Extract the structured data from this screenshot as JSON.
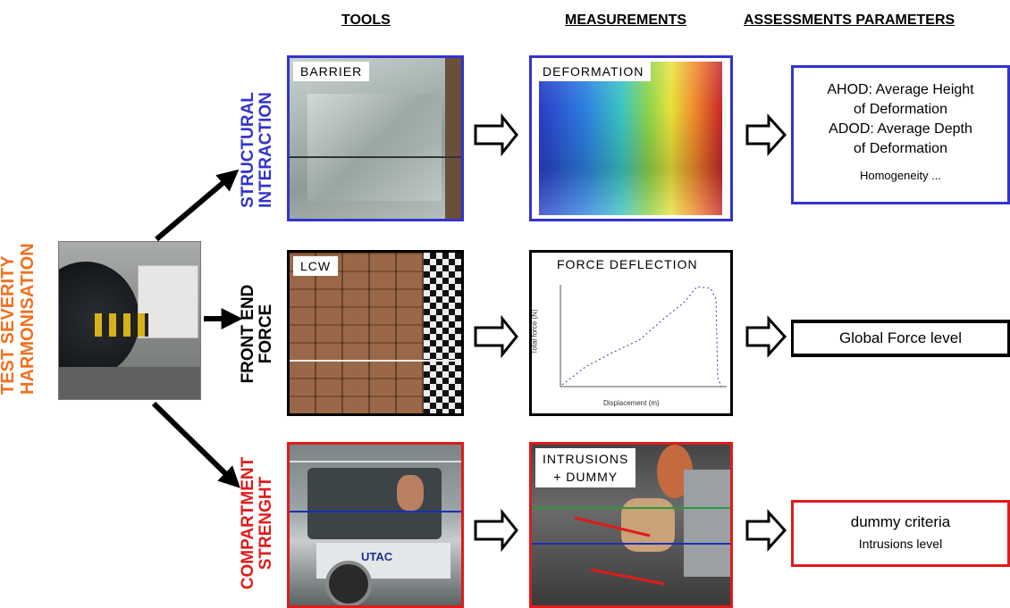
{
  "headers": {
    "tools": "TOOLS",
    "measurements": "MEASUREMENTS",
    "assessments": "ASSESSMENTS PARAMETERS"
  },
  "left_label": [
    "TEST SEVERITY",
    "HARMONISATION"
  ],
  "rows": [
    {
      "label": [
        "STRUCTURAL",
        "INTERACTION"
      ],
      "color": "#3333cc",
      "tool_tag": "BARRIER",
      "measure_tag": "DEFORMATION",
      "params": [
        "AHOD: Average Height",
        "of Deformation",
        "ADOD: Average Depth",
        "of Deformation",
        "Homogeneity ..."
      ]
    },
    {
      "label": [
        "FRONT END",
        "FORCE"
      ],
      "color": "#000000",
      "tool_tag": "LCW",
      "measure_tag": "FORCE DEFLECTION",
      "graph_xlabel": "Displacement (m)",
      "graph_ylabel": "Total force (N)",
      "params": [
        "Global Force level"
      ]
    },
    {
      "label": [
        "COMPARTMENT",
        "STRENGHT"
      ],
      "color": "#e01b1b",
      "tool_tag": "",
      "measure_tag": [
        "INTRUSIONS",
        "+ DUMMY"
      ],
      "photo_text": "UTAC",
      "params": [
        "dummy criteria",
        "Intrusions level"
      ]
    }
  ],
  "colors": {
    "orange": "#f07020",
    "blue": "#3333cc",
    "red": "#e01b1b"
  },
  "icons": [
    "arrow-right-outline-icon",
    "diagonal-arrow-icon"
  ]
}
